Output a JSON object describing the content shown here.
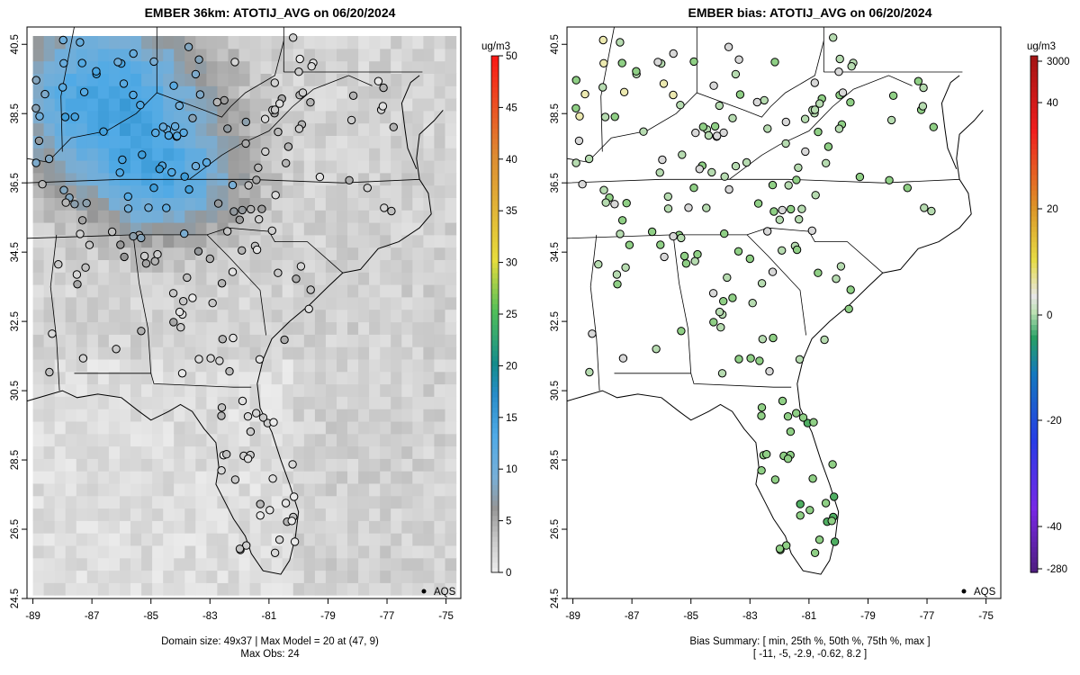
{
  "left": {
    "title": "EMBER 36km: ATOTIJ_AVG on 06/20/2024",
    "subtitle_line1": "Domain size: 49x37 | Max Model = 20 at (47, 9)",
    "subtitle_line2": "Max Obs: 24",
    "legend_label": "AQS",
    "colorbar": {
      "unit": "ug/m3",
      "ticks": [
        "0",
        "5",
        "10",
        "15",
        "20",
        "25",
        "30",
        "35",
        "40",
        "45",
        "50"
      ]
    }
  },
  "right": {
    "title": "EMBER bias: ATOTIJ_AVG on 06/20/2024",
    "subtitle_line1": "Bias Summary: [ min, 25th %, 50th %, 75th %, max ]",
    "subtitle_line2": "[ -11,   -5,   -2.9,   -0.62,   8.2 ]",
    "legend_label": "AQS",
    "colorbar": {
      "unit": "ug/m3",
      "ticks": [
        "3000",
        "40",
        "20",
        "0",
        "-20",
        "-40",
        "-280"
      ]
    }
  },
  "chart_data": [
    {
      "type": "heatmap",
      "title": "EMBER 36km: ATOTIJ_AVG on 06/20/2024",
      "xlabel": "",
      "ylabel": "",
      "xlim": [
        -89.2,
        -74.5
      ],
      "ylim": [
        24.5,
        41.0
      ],
      "x_ticks": [
        "-89",
        "-87",
        "-85",
        "-83",
        "-81",
        "-79",
        "-77",
        "-75"
      ],
      "y_ticks": [
        "24.5",
        "26.5",
        "28.5",
        "30.5",
        "32.5",
        "34.5",
        "36.5",
        "38.5",
        "40.5"
      ],
      "color_scale": {
        "min": 0,
        "max": 50,
        "unit": "ug/m3"
      },
      "domain_size": "49x37",
      "max_model": 20,
      "max_model_cell": [
        47,
        9
      ],
      "max_obs": 24,
      "legend": {
        "entries": [
          "AQS"
        ],
        "placement": "bottom-right"
      }
    },
    {
      "type": "scatter",
      "title": "EMBER bias: ATOTIJ_AVG on 06/20/2024",
      "xlabel": "",
      "ylabel": "",
      "xlim": [
        -89.2,
        -74.5
      ],
      "ylim": [
        24.5,
        41.0
      ],
      "x_ticks": [
        "-89",
        "-87",
        "-85",
        "-83",
        "-81",
        "-79",
        "-77",
        "-75"
      ],
      "y_ticks": [
        "24.5",
        "26.5",
        "28.5",
        "30.5",
        "32.5",
        "34.5",
        "36.5",
        "38.5",
        "40.5"
      ],
      "color_scale": {
        "unit": "ug/m3",
        "labels": [
          3000,
          40,
          20,
          0,
          -20,
          -40,
          -280
        ]
      },
      "bias_summary": {
        "min": -11,
        "p25": -5,
        "p50": -2.9,
        "p75": -0.62,
        "max": 8.2
      },
      "legend": {
        "entries": [
          "AQS"
        ],
        "placement": "bottom-right"
      }
    }
  ]
}
